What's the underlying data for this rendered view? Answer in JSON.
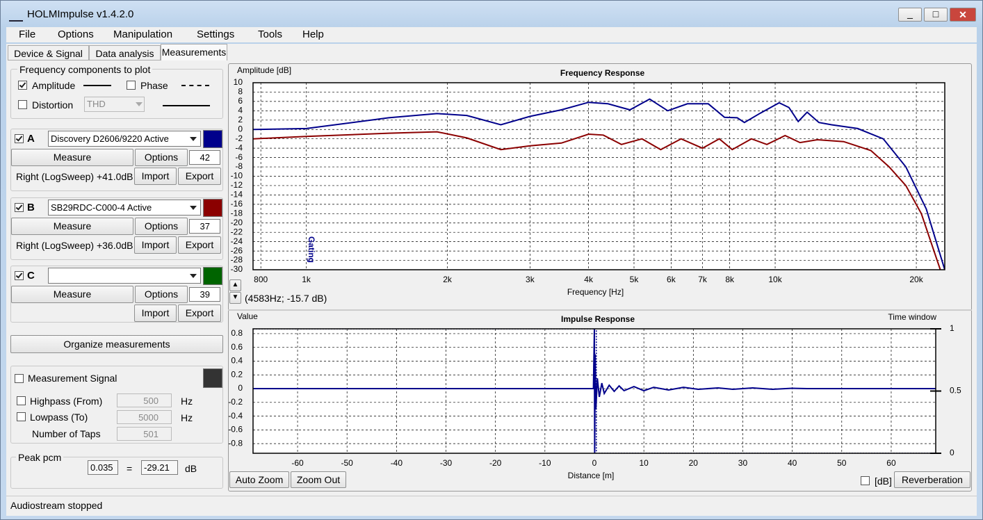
{
  "window": {
    "title": "HOLMImpulse  v1.4.2.0"
  },
  "menu": [
    "File",
    "Options",
    "Manipulation",
    "Settings",
    "Tools",
    "Help"
  ],
  "tabs": [
    "Device & Signal",
    "Data analysis",
    "Measurements"
  ],
  "components": {
    "title": "Frequency components to plot",
    "amplitude": "Amplitude",
    "phase": "Phase",
    "distortion": "Distortion",
    "distortion_mode": "THD"
  },
  "channels": [
    {
      "letter": "A",
      "name": "Discovery D2606/9220 Active",
      "color": "#00008b",
      "measure": "Measure",
      "options": "Options",
      "count": 42,
      "info": "Right (LogSweep) +41.0dB",
      "import": "Import",
      "export": "Export"
    },
    {
      "letter": "B",
      "name": "SB29RDC-C000-4 Active",
      "color": "#8b0000",
      "measure": "Measure",
      "options": "Options",
      "count": 37,
      "info": "Right (LogSweep) +36.0dB",
      "import": "Import",
      "export": "Export"
    },
    {
      "letter": "C",
      "color": "#006400",
      "measure": "Measure",
      "options": "Options",
      "count": 39,
      "import": "Import",
      "export": "Export"
    }
  ],
  "organize": "Organize measurements",
  "signal": {
    "title": "Measurement Signal",
    "highpass": "Highpass (From)",
    "highpass_value": 500,
    "highpass_unit": "Hz",
    "lowpass": "Lowpass (To)",
    "lowpass_value": 5000,
    "lowpass_unit": "Hz",
    "taps_label": "Number of Taps",
    "taps": 501
  },
  "peak": {
    "title": "Peak pcm",
    "value": 0.035,
    "equals": "=",
    "db_value": -29.21,
    "unit": "dB"
  },
  "chart_buttons": {
    "auto_zoom": "Auto Zoom",
    "zoom_out": "Zoom Out",
    "db": "[dB]",
    "reverberation": "Reverberation"
  },
  "cursor_readout": "(4583Hz; -15.7 dB)",
  "status": "Audiostream stopped",
  "chart_data": [
    {
      "type": "line",
      "title": "Frequency Response",
      "xlabel": "Frequency [Hz]",
      "ylabel": "Amplitude [dB]",
      "annotation": "Gating",
      "xscale": "log",
      "grid": true,
      "xlim": [
        770,
        23000
      ],
      "ylim": [
        -30,
        10
      ],
      "xticks": [
        800,
        {
          "value": 1000,
          "label": "1k"
        },
        {
          "value": 2000,
          "label": "2k"
        },
        {
          "value": 3000,
          "label": "3k"
        },
        {
          "value": 4000,
          "label": "4k"
        },
        {
          "value": 5000,
          "label": "5k"
        },
        {
          "value": 6000,
          "label": "6k"
        },
        {
          "value": 7000,
          "label": "7k"
        },
        {
          "value": 8000,
          "label": "8k"
        },
        {
          "value": 10000,
          "label": "10k"
        },
        {
          "value": 20000,
          "label": "20k"
        }
      ],
      "yticks": [
        -30,
        -28,
        -26,
        -24,
        -22,
        -20,
        -18,
        -16,
        -14,
        -12,
        -10,
        -8,
        -6,
        -4,
        -2,
        0,
        2,
        4,
        6,
        8,
        10
      ],
      "series": [
        {
          "color": "#00008b",
          "x": [
            770,
            1000,
            1500,
            1900,
            2200,
            2600,
            3000,
            3500,
            4000,
            4400,
            4900,
            5400,
            5900,
            6500,
            7200,
            7800,
            8300,
            8600,
            9300,
            10200,
            10700,
            11200,
            11700,
            12400,
            13200,
            15000,
            17000,
            19000,
            21000,
            23000
          ],
          "values": [
            0,
            0.2,
            2.5,
            3.4,
            3.0,
            1,
            2.8,
            4.2,
            5.8,
            5.5,
            4.2,
            6.5,
            4.0,
            5.5,
            5.5,
            2.6,
            2.5,
            1.5,
            3.5,
            5.7,
            4.7,
            1.7,
            3.7,
            1.5,
            1.0,
            0.2,
            -2,
            -8,
            -17,
            -30
          ]
        },
        {
          "color": "#8b0000",
          "x": [
            770,
            1000,
            1500,
            1900,
            2200,
            2600,
            3000,
            3500,
            4000,
            4300,
            4700,
            5200,
            5700,
            6300,
            7000,
            7600,
            8100,
            8900,
            9600,
            10500,
            11300,
            12300,
            14000,
            16000,
            17500,
            19000,
            20500,
            22500
          ],
          "values": [
            -2,
            -1.5,
            -0.8,
            -0.5,
            -1.8,
            -4.3,
            -3.5,
            -2.9,
            -1,
            -1.2,
            -3.2,
            -2,
            -4.3,
            -2,
            -4,
            -2,
            -4.3,
            -2,
            -3.2,
            -1.3,
            -2.8,
            -2.2,
            -2.6,
            -4.5,
            -8,
            -12,
            -18,
            -30
          ]
        }
      ]
    },
    {
      "type": "line",
      "title": "Impulse Response",
      "xlabel": "Distance [m]",
      "ylabel": "Value",
      "y2label": "Time window",
      "grid": true,
      "xlim": [
        -69,
        69
      ],
      "ylim": [
        -0.94,
        0.87
      ],
      "y2lim": [
        0,
        1
      ],
      "xticks": [
        -60,
        -50,
        -40,
        -30,
        -20,
        -10,
        0,
        10,
        20,
        30,
        40,
        50,
        60
      ],
      "yticks": [
        -0.8,
        -0.6,
        -0.4,
        -0.2,
        0,
        0.2,
        0.4,
        0.6,
        0.8
      ],
      "y2ticks": [
        0,
        0.5,
        1
      ],
      "series": [
        {
          "color": "#00008b",
          "x": [
            -69,
            -0.2,
            0,
            0.05,
            0.15,
            0.3,
            0.6,
            1,
            1.5,
            2,
            3,
            4,
            5,
            6,
            8,
            10,
            12,
            15,
            18,
            21,
            25,
            28,
            32,
            36,
            40,
            43,
            50,
            69
          ],
          "values": [
            0,
            0,
            0.87,
            -0.94,
            0.5,
            -0.3,
            0.15,
            -0.12,
            0.08,
            -0.07,
            0.05,
            -0.04,
            0.04,
            -0.03,
            0.03,
            -0.03,
            0.02,
            -0.02,
            0.02,
            -0.01,
            0.01,
            -0.01,
            0.01,
            -0.01,
            0.005,
            0,
            0,
            0
          ]
        },
        {
          "color": "#00008b",
          "axis": "y2",
          "line_style": "dotted",
          "x": [
            -69,
            0,
            0.4,
            0.4,
            69
          ],
          "values": [
            1,
            1,
            1,
            0,
            0
          ]
        }
      ]
    }
  ]
}
